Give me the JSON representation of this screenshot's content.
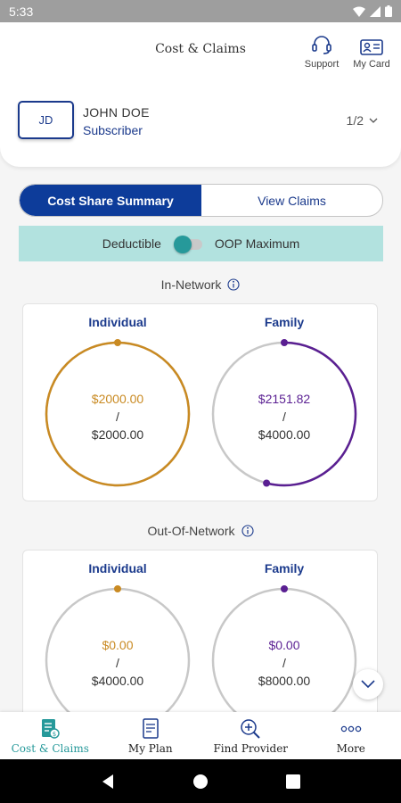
{
  "status_bar": {
    "time": "5:33"
  },
  "header": {
    "title": "Cost & Claims",
    "support_label": "Support",
    "mycard_label": "My Card"
  },
  "member": {
    "initials": "JD",
    "name": "JOHN DOE",
    "role": "Subscriber",
    "page_indicator": "1/2"
  },
  "tabs": {
    "active": "Cost Share Summary",
    "inactive": "View Claims"
  },
  "toggle": {
    "left_label": "Deductible",
    "right_label": "OOP Maximum",
    "selected": "Deductible"
  },
  "in_network": {
    "title": "In-Network",
    "individual": {
      "label": "Individual",
      "spent": "$2000.00",
      "separator": "/",
      "limit": "$2000.00",
      "progress": 1.0,
      "color": "#c98a22"
    },
    "family": {
      "label": "Family",
      "spent": "$2151.82",
      "separator": "/",
      "limit": "$4000.00",
      "progress": 0.54,
      "color": "#5a1f92"
    }
  },
  "out_network": {
    "title": "Out-Of-Network",
    "individual": {
      "label": "Individual",
      "spent": "$0.00",
      "separator": "/",
      "limit": "$4000.00",
      "progress": 0.0,
      "color": "#c98a22"
    },
    "family": {
      "label": "Family",
      "spent": "$0.00",
      "separator": "/",
      "limit": "$8000.00",
      "progress": 0.0,
      "color": "#5a1f92"
    }
  },
  "bottom_nav": {
    "items": [
      {
        "label": "Cost & Claims",
        "icon": "cost-claims-icon",
        "active": true
      },
      {
        "label": "My Plan",
        "icon": "my-plan-icon",
        "active": false
      },
      {
        "label": "Find Provider",
        "icon": "find-provider-icon",
        "active": false
      },
      {
        "label": "More",
        "icon": "more-icon",
        "active": false
      }
    ]
  },
  "colors": {
    "primary": "#0d3c9a",
    "teal": "#26999a",
    "toggle_bg": "#b2e2df",
    "individual": "#c98a22",
    "family": "#5a1f92",
    "ring_track": "#c8c8c8"
  }
}
